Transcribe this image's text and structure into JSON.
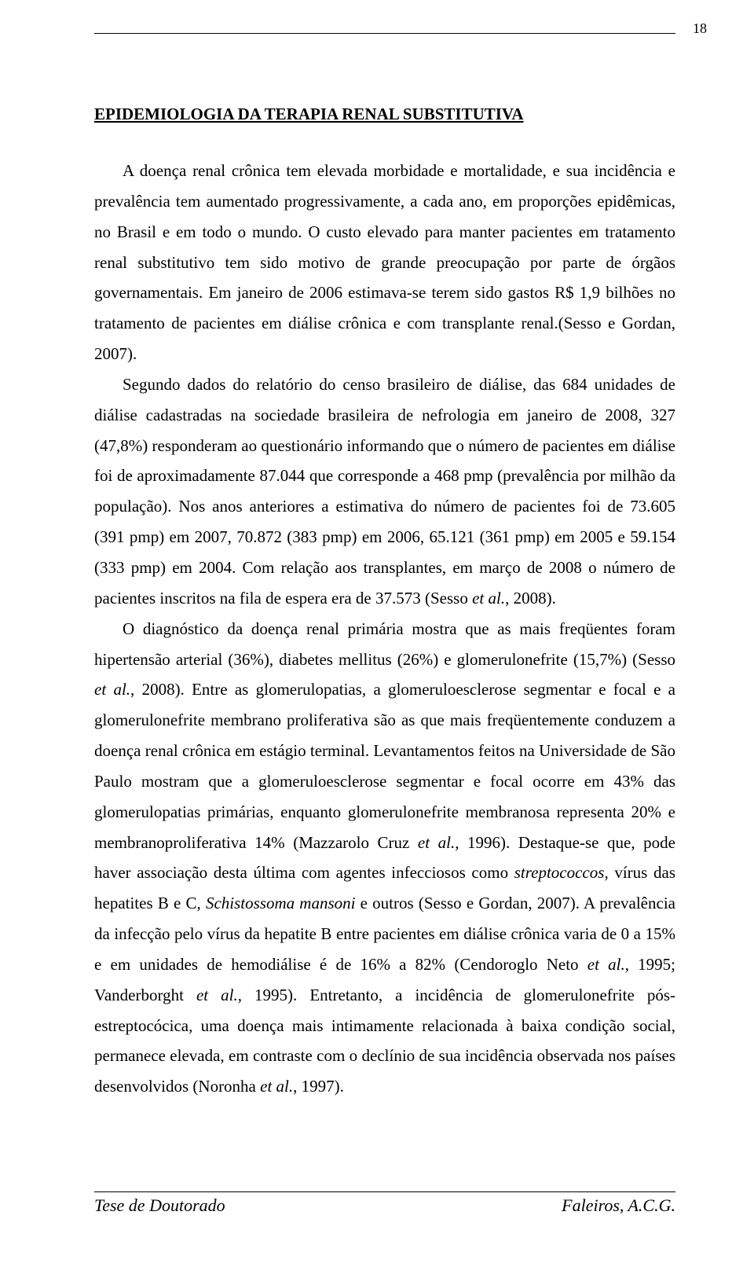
{
  "page_number": "18",
  "heading": "EPIDEMIOLOGIA DA TERAPIA RENAL SUBSTITUTIVA",
  "paragraphs": [
    {
      "segments": [
        {
          "text": "A doença renal crônica tem elevada morbidade e mortalidade, e sua incidência e prevalência tem aumentado progressivamente, a cada ano, em proporções epidêmicas, no Brasil e em todo o mundo. O custo elevado para manter pacientes em tratamento renal substitutivo tem sido motivo de grande preocupação por parte de órgãos governamentais. Em janeiro de 2006 estimava-se terem sido gastos R$ 1,9 bilhões no tratamento de pacientes em diálise crônica e com transplante renal.(Sesso e Gordan, 2007).",
          "italic": false
        }
      ]
    },
    {
      "segments": [
        {
          "text": "Segundo dados do relatório do censo brasileiro de diálise, das 684 unidades de diálise cadastradas na sociedade brasileira de nefrologia em janeiro de 2008, 327 (47,8%) responderam ao questionário informando que o número de pacientes em diálise foi de aproximadamente 87.044 que corresponde a 468 pmp (prevalência por milhão da população). Nos anos anteriores a estimativa do número de pacientes foi de 73.605 (391 pmp) em 2007, 70.872 (383 pmp) em 2006, 65.121 (361 pmp) em 2005 e 59.154 (333 pmp) em 2004. Com relação aos transplantes, em março de 2008 o número de pacientes inscritos na fila de espera era de 37.573 (Sesso ",
          "italic": false
        },
        {
          "text": "et al.",
          "italic": true
        },
        {
          "text": ", 2008).",
          "italic": false
        }
      ]
    },
    {
      "segments": [
        {
          "text": "O diagnóstico da doença renal primária mostra que as mais freqüentes foram hipertensão arterial (36%), diabetes mellitus (26%) e glomerulonefrite (15,7%) (Sesso ",
          "italic": false
        },
        {
          "text": "et al.",
          "italic": true
        },
        {
          "text": ", 2008). Entre as glomerulopatias, a glomeruloesclerose segmentar e focal e a glomerulonefrite membrano proliferativa são as que mais freqüentemente conduzem a doença renal crônica em estágio terminal. Levantamentos feitos na Universidade de São Paulo mostram que a glomeruloesclerose segmentar e focal ocorre em 43% das glomerulopatias primárias, enquanto glomerulonefrite membranosa representa 20% e membranoproliferativa 14% (Mazzarolo Cruz ",
          "italic": false
        },
        {
          "text": "et al.",
          "italic": true
        },
        {
          "text": ", 1996). Destaque-se que, pode haver associação desta última com agentes infecciosos como ",
          "italic": false
        },
        {
          "text": "streptococcos",
          "italic": true
        },
        {
          "text": ", vírus das hepatites B e C, ",
          "italic": false
        },
        {
          "text": "Schistossoma mansoni",
          "italic": true
        },
        {
          "text": " e outros (Sesso e Gordan, 2007). A prevalência da infecção pelo vírus da hepatite B entre pacientes em diálise crônica varia de 0 a 15% e em unidades de hemodiálise é de 16% a 82% (Cendoroglo Neto ",
          "italic": false
        },
        {
          "text": "et al.",
          "italic": true
        },
        {
          "text": ", 1995; Vanderborght ",
          "italic": false
        },
        {
          "text": "et al.",
          "italic": true
        },
        {
          "text": ", 1995). Entretanto, a incidência de glomerulonefrite pós-estreptocócica, uma doença mais intimamente relacionada à baixa condição social, permanece elevada, em contraste com o declínio de sua incidência observada nos países desenvolvidos (Noronha ",
          "italic": false
        },
        {
          "text": "et al.",
          "italic": true
        },
        {
          "text": ", 1997).",
          "italic": false
        }
      ]
    }
  ],
  "footer_left": "Tese de Doutorado",
  "footer_right": "Faleiros, A.C.G."
}
